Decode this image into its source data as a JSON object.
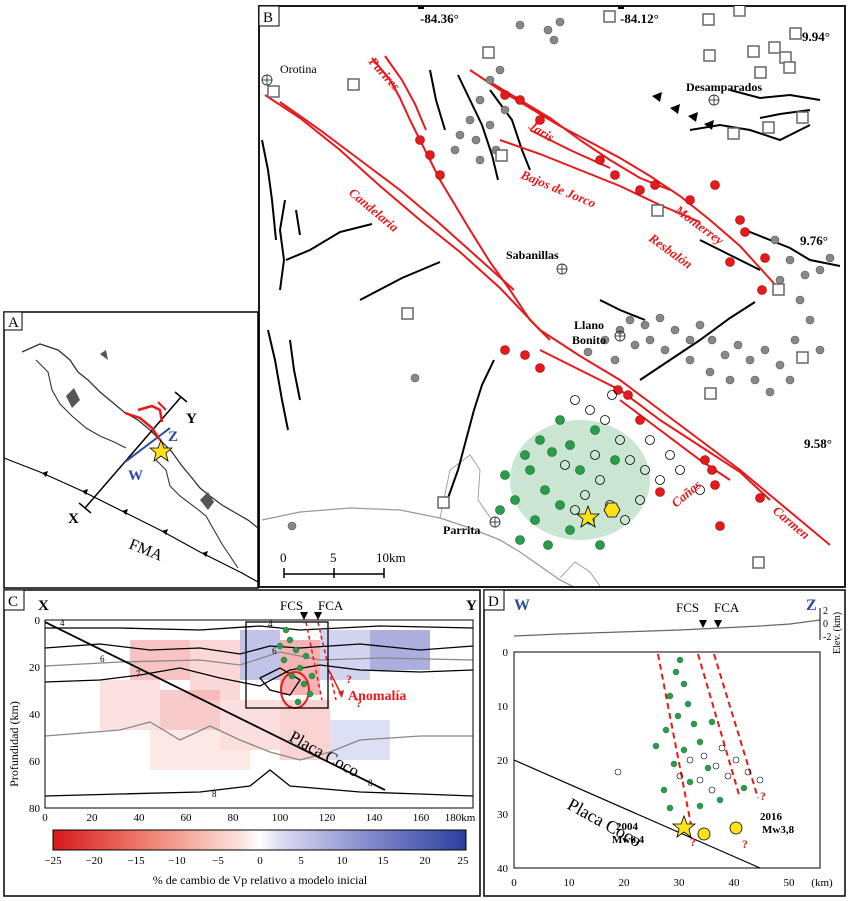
{
  "panelA": {
    "letter": "A",
    "labels": {
      "x": "X",
      "y": "Y",
      "z": "Z",
      "w": "W",
      "fma": "FMA"
    }
  },
  "panelB": {
    "letter": "B",
    "coords": {
      "lon1": "-84.36°",
      "lon2": "-84.12°",
      "lat1": "9.94°",
      "lat2": "9.76°",
      "lat3": "9.58°"
    },
    "places": {
      "orotina": "Orotina",
      "desamparados": "Desamparados",
      "sabanillas": "Sabanillas",
      "llano1": "Llano",
      "llano2": "Bonito",
      "parrita": "Parrita"
    },
    "faults": {
      "purires": "Purires",
      "jaris": "Jaris",
      "bajos": "Bajos de Jorco",
      "candelaria": "Candelaria",
      "monterrey": "Monterrey",
      "resbalon": "Resbalón",
      "canas": "Cañas",
      "carmen": "Carmen"
    },
    "scale": {
      "t0": "0",
      "t5": "5",
      "t10": "10km"
    }
  },
  "panelC": {
    "letter": "C",
    "left": "X",
    "right": "Y",
    "fcs": "FCS",
    "fca": "FCA",
    "ylabel": "Profundidad (km)",
    "yticks": [
      "0",
      "20",
      "40",
      "60",
      "80"
    ],
    "xticks": [
      "0",
      "20",
      "40",
      "60",
      "80",
      "100",
      "120",
      "140",
      "160",
      "180km"
    ],
    "contours": [
      "4",
      "6",
      "7",
      "8",
      "4",
      "6",
      "8"
    ],
    "anomaly": "Anomalía",
    "plate": "Placa Coco",
    "q": "?"
  },
  "colorbar": {
    "ticks": [
      "−25",
      "−20",
      "−15",
      "−10",
      "−5",
      "0",
      "5",
      "10",
      "15",
      "20",
      "25"
    ],
    "label": "% de cambio de Vp relativo a modelo inicial",
    "colors": {
      "neg": "#d7191c",
      "mid": "#ffffff",
      "pos": "#2c3e9e"
    }
  },
  "panelD": {
    "letter": "D",
    "left": "W",
    "right": "Z",
    "fcs": "FCS",
    "fca": "FCA",
    "elev": "Elev. (km)",
    "elevTicks": [
      "2",
      "0",
      "-2"
    ],
    "yticks": [
      "0",
      "10",
      "20",
      "30",
      "40"
    ],
    "xticks": [
      "0",
      "10",
      "20",
      "30",
      "40",
      "50",
      "(km)"
    ],
    "eq2004a": "2004",
    "eq2004b": "Mw6,4",
    "eq2016a": "2016",
    "eq2016b": "Mw3,8",
    "plate": "Placa Coco",
    "q": "?"
  }
}
